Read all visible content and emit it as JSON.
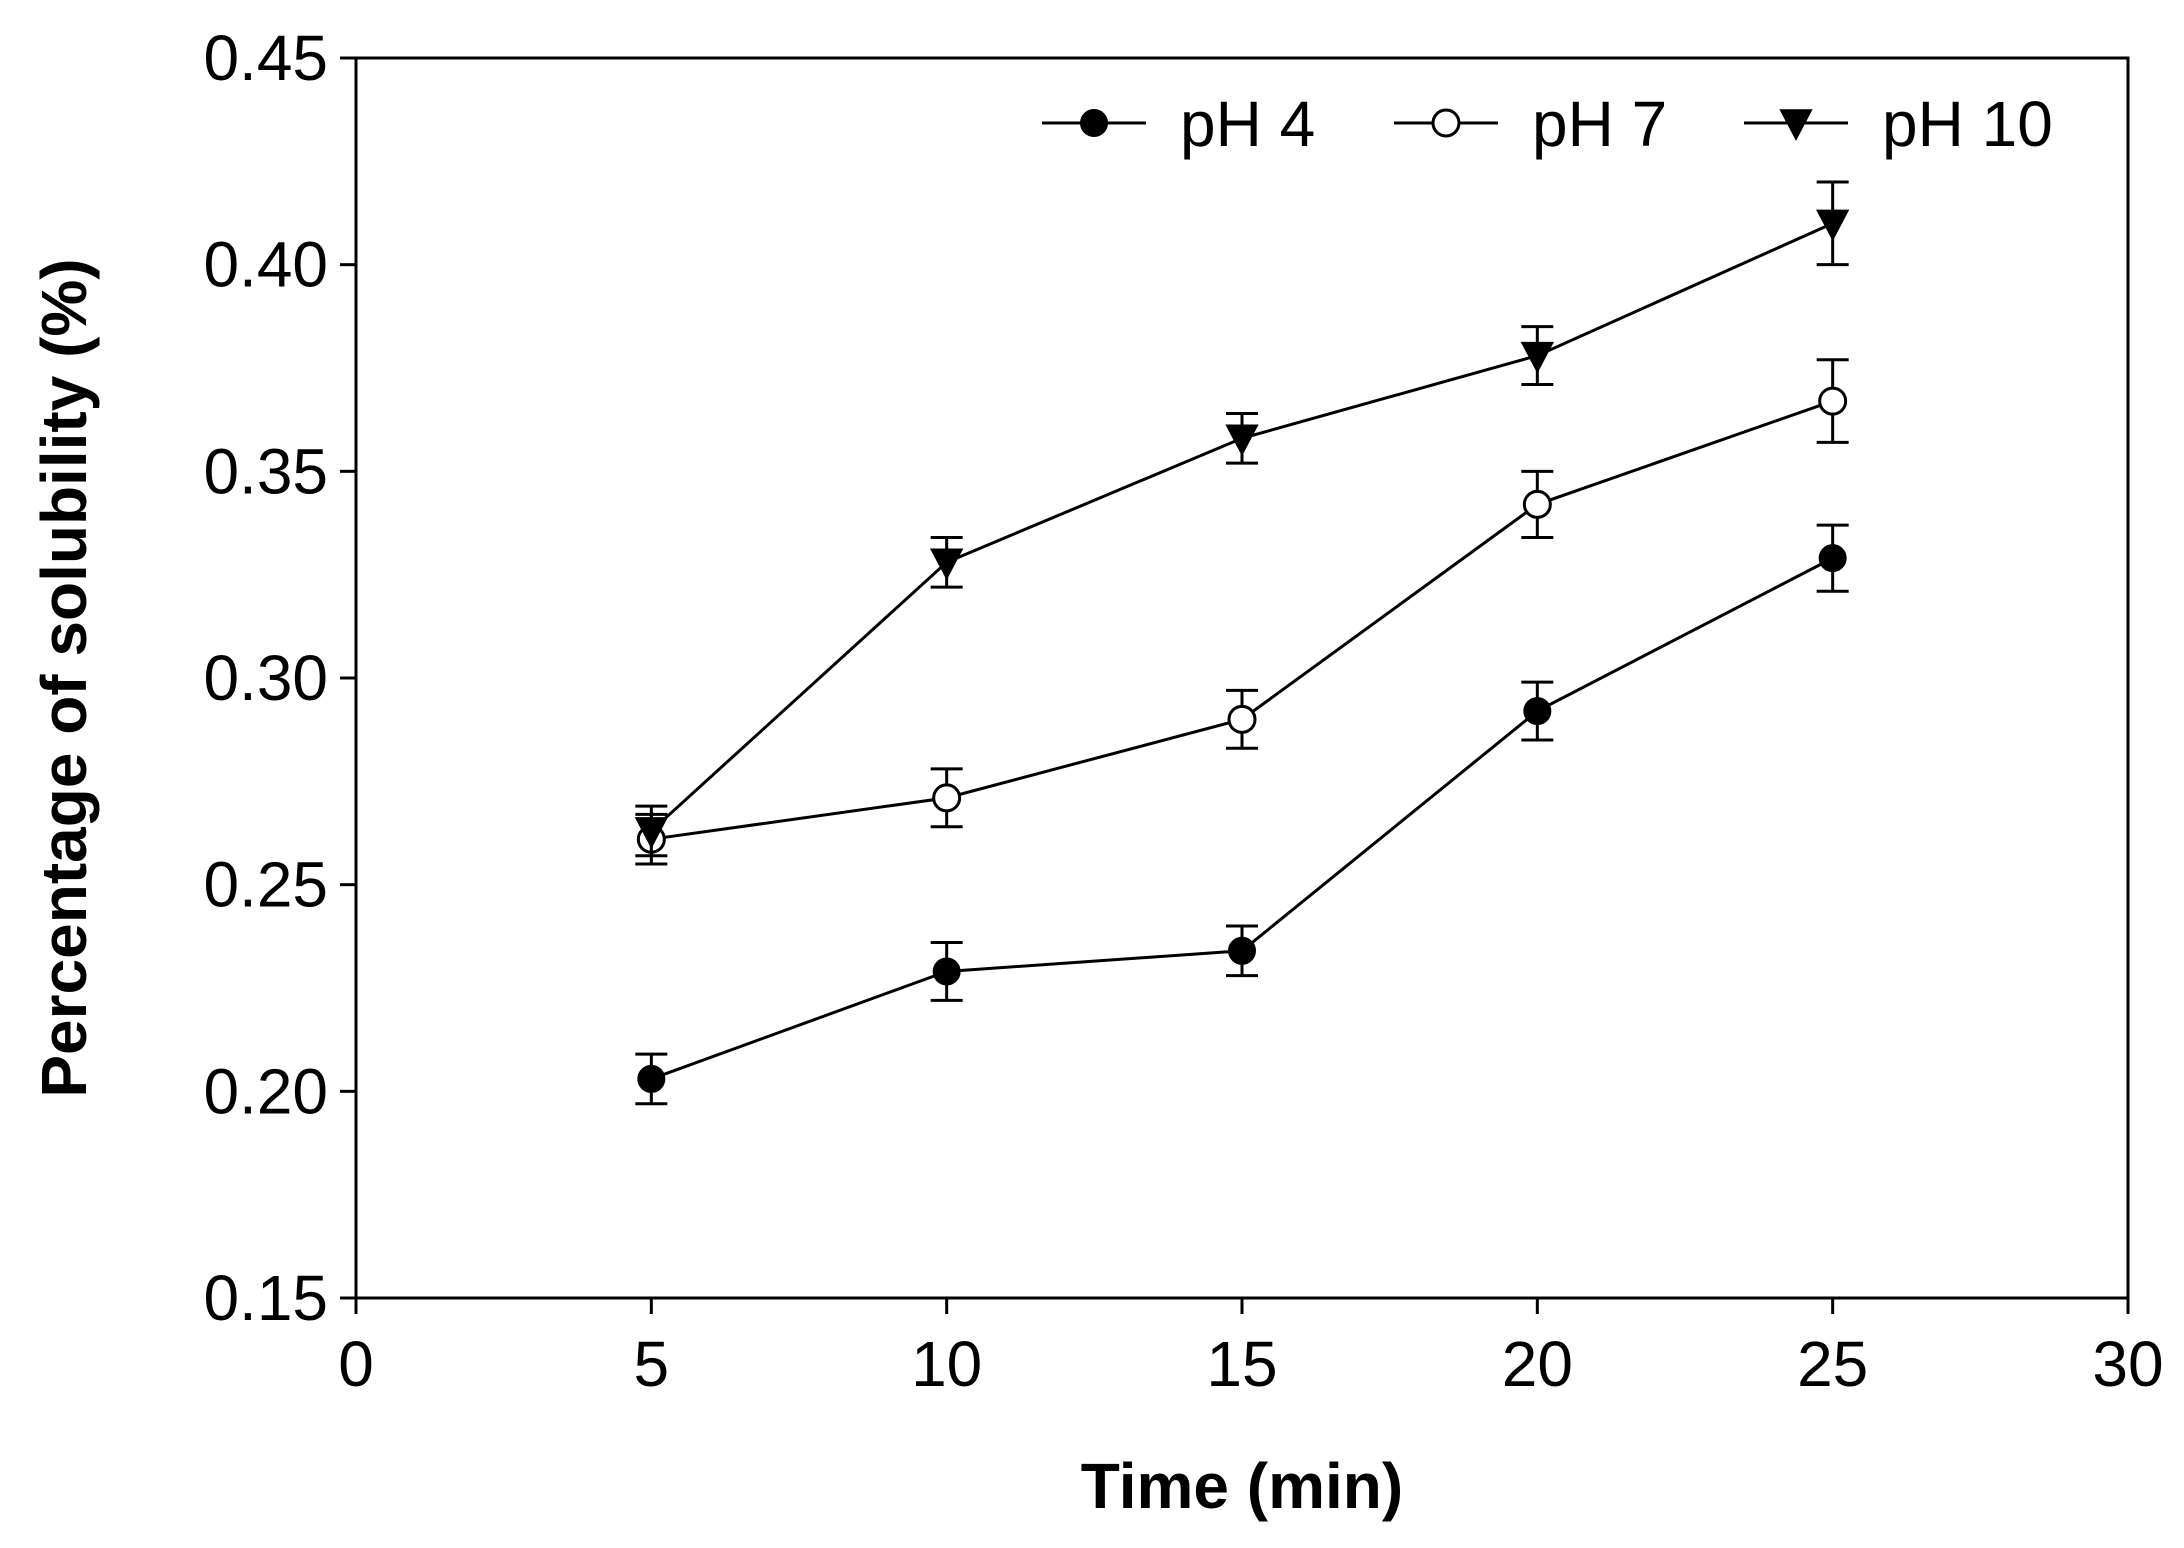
{
  "chart_data": {
    "type": "line",
    "title": "",
    "xlabel": "Time (min)",
    "ylabel": "Percentage of solubility (%)",
    "xlim": [
      0,
      30
    ],
    "ylim": [
      0.15,
      0.45
    ],
    "xticks": [
      0,
      5,
      10,
      15,
      20,
      25,
      30
    ],
    "xtick_labels": [
      "0",
      "5",
      "10",
      "15",
      "20",
      "25",
      "30"
    ],
    "yticks": [
      0.15,
      0.2,
      0.25,
      0.3,
      0.35,
      0.4,
      0.45
    ],
    "ytick_labels": [
      "0.15",
      "0.20",
      "0.25",
      "0.30",
      "0.35",
      "0.40",
      "0.45"
    ],
    "grid": false,
    "legend_position": "top-right",
    "x": [
      5,
      10,
      15,
      20,
      25
    ],
    "series": [
      {
        "name": "pH 4",
        "marker": "filled-circle",
        "values": [
          0.203,
          0.229,
          0.234,
          0.292,
          0.329
        ],
        "errors": [
          0.006,
          0.007,
          0.006,
          0.007,
          0.008
        ]
      },
      {
        "name": "pH 7",
        "marker": "open-circle",
        "values": [
          0.261,
          0.271,
          0.29,
          0.342,
          0.367
        ],
        "errors": [
          0.006,
          0.007,
          0.007,
          0.008,
          0.01
        ]
      },
      {
        "name": "pH 10",
        "marker": "filled-triangle-down",
        "values": [
          0.263,
          0.328,
          0.358,
          0.378,
          0.41
        ],
        "errors": [
          0.006,
          0.006,
          0.006,
          0.007,
          0.01
        ]
      }
    ]
  }
}
